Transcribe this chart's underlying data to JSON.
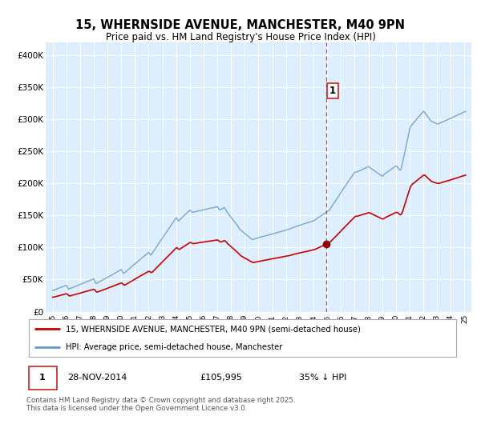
{
  "title": "15, WHERNSIDE AVENUE, MANCHESTER, M40 9PN",
  "subtitle": "Price paid vs. HM Land Registry's House Price Index (HPI)",
  "title_fontsize": 10.5,
  "subtitle_fontsize": 8.5,
  "background_color": "#ffffff",
  "plot_bg_color": "#ddeeff",
  "grid_color": "#ffffff",
  "red_color": "#cc0000",
  "blue_color": "#6699cc",
  "marker_color": "#880000",
  "vline_color": "#cc2222",
  "vline_x": 2014.92,
  "marker_x": 2014.92,
  "marker_y": 105995,
  "annotation_label": "1",
  "ylim": [
    0,
    420000
  ],
  "xlim": [
    1994.5,
    2025.5
  ],
  "yticks": [
    0,
    50000,
    100000,
    150000,
    200000,
    250000,
    300000,
    350000,
    400000
  ],
  "ytick_labels": [
    "£0",
    "£50K",
    "£100K",
    "£150K",
    "£200K",
    "£250K",
    "£300K",
    "£350K",
    "£400K"
  ],
  "xticks": [
    1995,
    1996,
    1997,
    1998,
    1999,
    2000,
    2001,
    2002,
    2003,
    2004,
    2005,
    2006,
    2007,
    2008,
    2009,
    2010,
    2011,
    2012,
    2013,
    2014,
    2015,
    2016,
    2017,
    2018,
    2019,
    2020,
    2021,
    2022,
    2023,
    2024,
    2025
  ],
  "xtick_labels": [
    "95",
    "96",
    "97",
    "98",
    "99",
    "00",
    "01",
    "02",
    "03",
    "04",
    "05",
    "06",
    "07",
    "08",
    "09",
    "10",
    "11",
    "12",
    "13",
    "14",
    "15",
    "16",
    "17",
    "18",
    "19",
    "20",
    "21",
    "22",
    "23",
    "24",
    "25"
  ],
  "legend_line1": "15, WHERNSIDE AVENUE, MANCHESTER, M40 9PN (semi-detached house)",
  "legend_line2": "HPI: Average price, semi-detached house, Manchester",
  "footnote_label": "1",
  "footnote_date": "28-NOV-2014",
  "footnote_price": "£105,995",
  "footnote_pct": "35% ↓ HPI",
  "footnote_text": "Contains HM Land Registry data © Crown copyright and database right 2025.\nThis data is licensed under the Open Government Licence v3.0."
}
